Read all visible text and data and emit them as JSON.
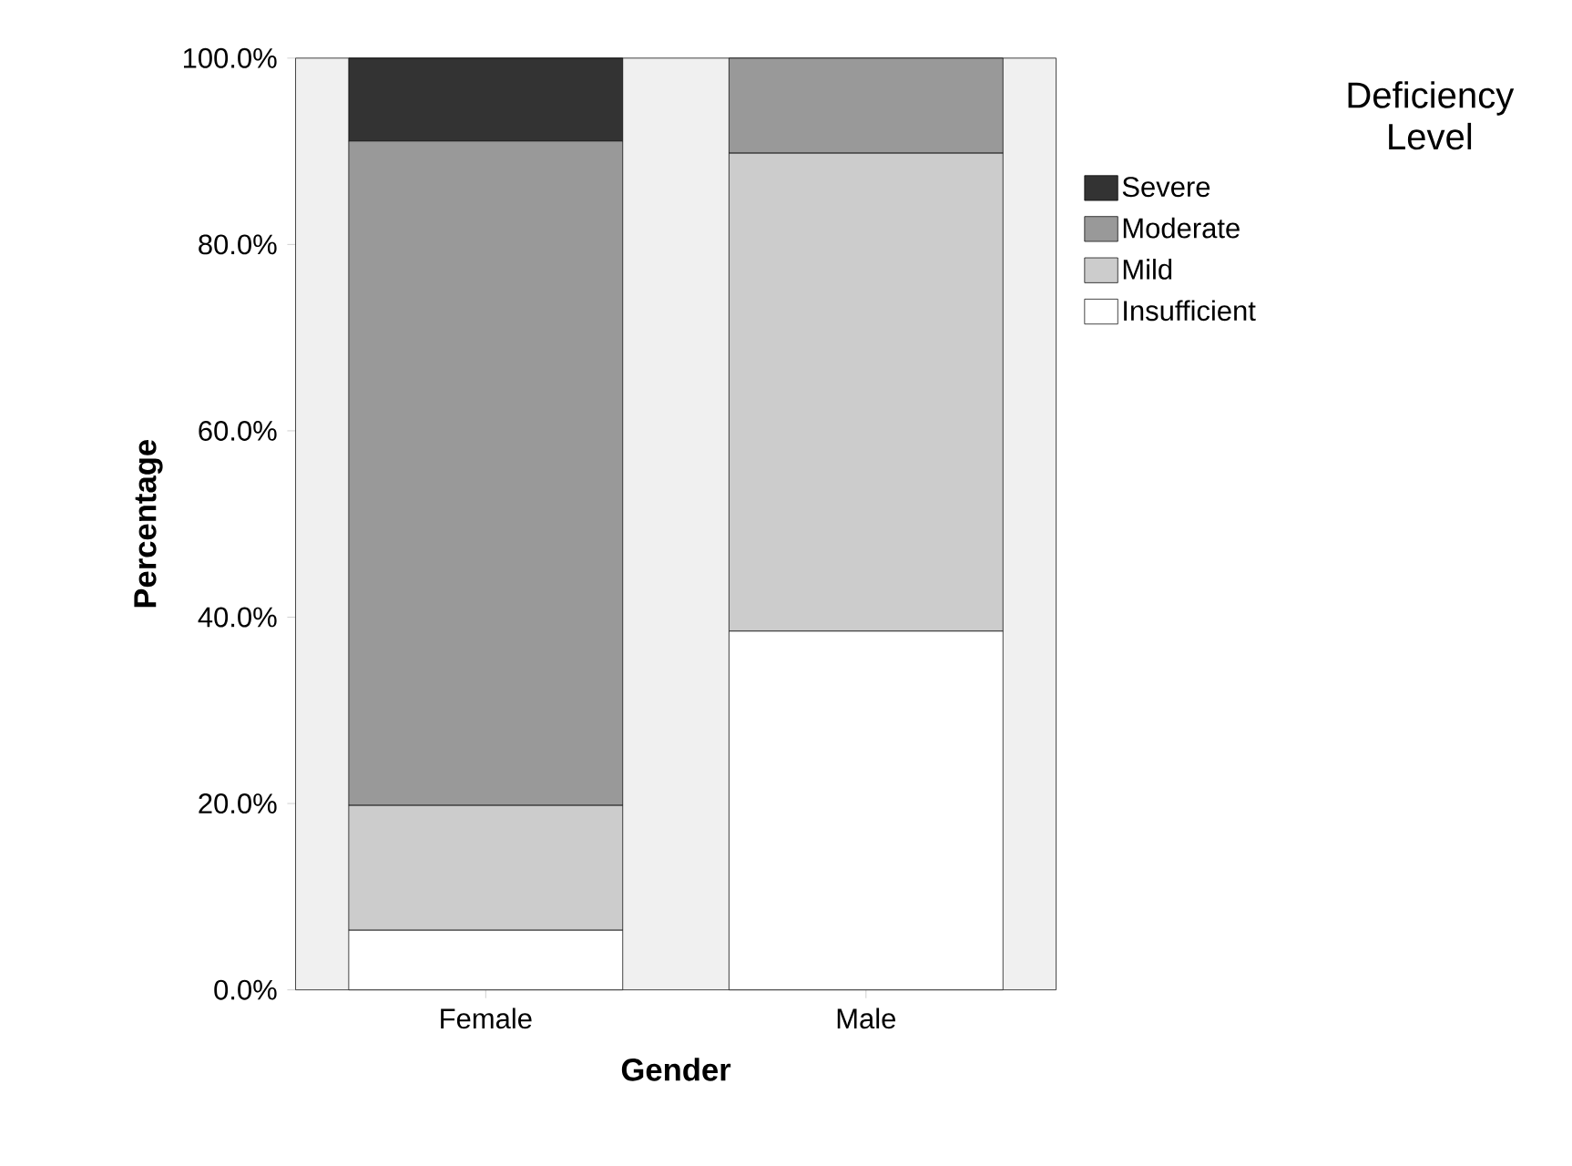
{
  "chart_data": {
    "type": "bar",
    "stacked": true,
    "xlabel": "Gender",
    "ylabel": "Percentage",
    "legend_title": "Deficiency Level",
    "legend": "right",
    "categories": [
      "Female",
      "Male"
    ],
    "series": [
      {
        "name": "Insufficient",
        "color": "#ffffff",
        "values": [
          6.4,
          38.5
        ]
      },
      {
        "name": "Mild",
        "color": "#cccccc",
        "values": [
          13.4,
          51.3
        ]
      },
      {
        "name": "Moderate",
        "color": "#999999",
        "values": [
          71.3,
          10.2
        ]
      },
      {
        "name": "Severe",
        "color": "#333333",
        "values": [
          8.9,
          0
        ]
      }
    ],
    "ylim": [
      0,
      100
    ],
    "yticks": [
      {
        "value": 0,
        "label": "0.0%"
      },
      {
        "value": 20,
        "label": "20.0%"
      },
      {
        "value": 40,
        "label": "40.0%"
      },
      {
        "value": 60,
        "label": "60.0%"
      },
      {
        "value": 80,
        "label": "80.0%"
      },
      {
        "value": 100,
        "label": "100.0%"
      }
    ],
    "grid": false
  }
}
